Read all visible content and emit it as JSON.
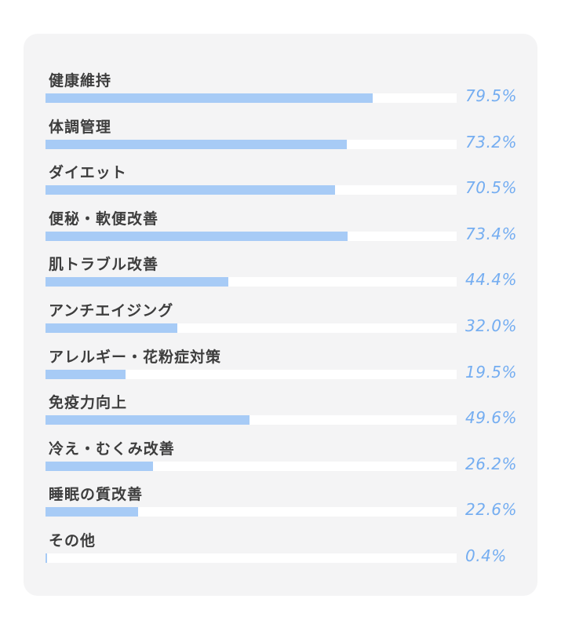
{
  "chart_data": {
    "type": "bar",
    "orientation": "horizontal",
    "xlim": [
      0,
      100
    ],
    "unit": "%",
    "bar_color": "#a7cbf6",
    "value_color": "#74adf1",
    "background_color": "#f4f4f5",
    "rows": [
      {
        "label": "健康維持",
        "value": 79.5,
        "display": "79.5%"
      },
      {
        "label": "体調管理",
        "value": 73.2,
        "display": "73.2%"
      },
      {
        "label": "ダイエット",
        "value": 70.5,
        "display": "70.5%"
      },
      {
        "label": "便秘・軟便改善",
        "value": 73.4,
        "display": "73.4%"
      },
      {
        "label": "肌トラブル改善",
        "value": 44.4,
        "display": "44.4%"
      },
      {
        "label": "アンチエイジング",
        "value": 32.0,
        "display": "32.0%"
      },
      {
        "label": "アレルギー・花粉症対策",
        "value": 19.5,
        "display": "19.5%"
      },
      {
        "label": "免疫力向上",
        "value": 49.6,
        "display": "49.6%"
      },
      {
        "label": "冷え・むくみ改善",
        "value": 26.2,
        "display": "26.2%"
      },
      {
        "label": "睡眠の質改善",
        "value": 22.6,
        "display": "22.6%"
      },
      {
        "label": "その他",
        "value": 0.4,
        "display": "0.4%"
      }
    ]
  }
}
